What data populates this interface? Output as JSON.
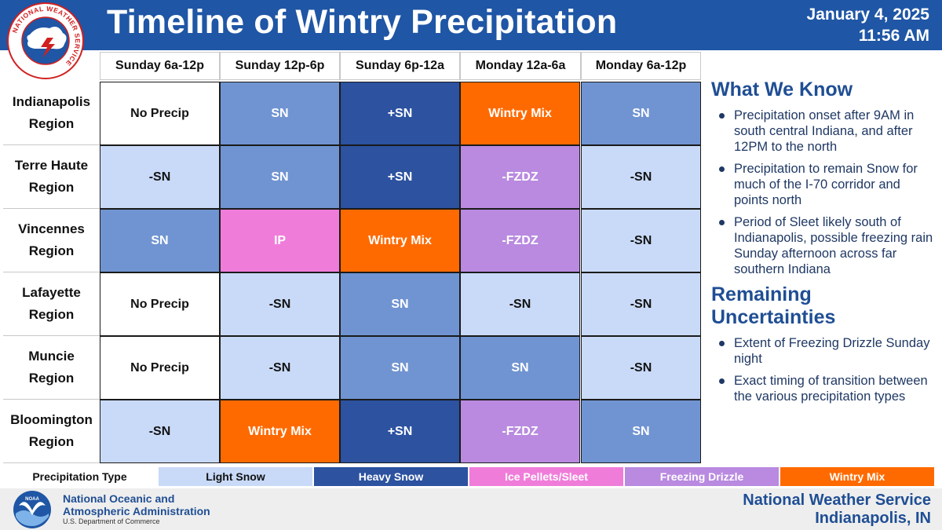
{
  "header": {
    "title": "Timeline of Wintry Precipitation",
    "date": "January 4, 2025",
    "time": "11:56 AM",
    "logo_text": "NATIONAL WEATHER SERVICE"
  },
  "columns": [
    "Sunday 6a-12p",
    "Sunday 12p-6p",
    "Sunday 6p-12a",
    "Monday 12a-6a",
    "Monday 6a-12p"
  ],
  "rows": [
    {
      "region": [
        "Indianapolis",
        "Region"
      ],
      "cells": [
        {
          "text": "No Precip",
          "type": "none"
        },
        {
          "text": "SN",
          "type": "snow"
        },
        {
          "text": "+SN",
          "type": "heavy"
        },
        {
          "text": "Wintry Mix",
          "type": "mix"
        },
        {
          "text": "SN",
          "type": "snow"
        }
      ]
    },
    {
      "region": [
        "Terre Haute",
        "Region"
      ],
      "cells": [
        {
          "text": "-SN",
          "type": "light"
        },
        {
          "text": "SN",
          "type": "snow"
        },
        {
          "text": "+SN",
          "type": "heavy"
        },
        {
          "text": "-FZDZ",
          "type": "fzdz"
        },
        {
          "text": "-SN",
          "type": "light"
        }
      ]
    },
    {
      "region": [
        "Vincennes",
        "Region"
      ],
      "cells": [
        {
          "text": "SN",
          "type": "snow"
        },
        {
          "text": "IP",
          "type": "ip"
        },
        {
          "text": "Wintry Mix",
          "type": "mix"
        },
        {
          "text": "-FZDZ",
          "type": "fzdz"
        },
        {
          "text": "-SN",
          "type": "light"
        }
      ]
    },
    {
      "region": [
        "Lafayette",
        "Region"
      ],
      "cells": [
        {
          "text": "No Precip",
          "type": "none"
        },
        {
          "text": "-SN",
          "type": "light"
        },
        {
          "text": "SN",
          "type": "snow"
        },
        {
          "text": "-SN",
          "type": "light"
        },
        {
          "text": "-SN",
          "type": "light"
        }
      ]
    },
    {
      "region": [
        "Muncie",
        "Region"
      ],
      "cells": [
        {
          "text": "No Precip",
          "type": "none"
        },
        {
          "text": "-SN",
          "type": "light"
        },
        {
          "text": "SN",
          "type": "snow"
        },
        {
          "text": "SN",
          "type": "snow"
        },
        {
          "text": "-SN",
          "type": "light"
        }
      ]
    },
    {
      "region": [
        "Bloomington",
        "Region"
      ],
      "cells": [
        {
          "text": "-SN",
          "type": "light"
        },
        {
          "text": "Wintry Mix",
          "type": "mix"
        },
        {
          "text": "+SN",
          "type": "heavy"
        },
        {
          "text": "-FZDZ",
          "type": "fzdz"
        },
        {
          "text": "SN",
          "type": "snow"
        }
      ]
    }
  ],
  "what_we_know": {
    "heading": "What We Know",
    "bullets": [
      "Precipitation onset after 9AM in south central Indiana, and after 12PM to the north",
      "Precipitation to remain Snow for much of the I-70 corridor and points north",
      "Period of Sleet likely south of Indianapolis, possible freezing rain Sunday afternoon across far southern Indiana"
    ]
  },
  "uncertainties": {
    "heading": "Remaining Uncertainties",
    "bullets": [
      "Extent of Freezing Drizzle Sunday night",
      "Exact timing of transition between the various precipitation types"
    ]
  },
  "legend": {
    "title": "Precipitation Type",
    "items": [
      {
        "label": "Light Snow",
        "color": "#c9daf8",
        "text_color": "#111111"
      },
      {
        "label": "Heavy Snow",
        "color": "#2c52a0",
        "text_color": "#ffffff"
      },
      {
        "label": "Ice Pellets/Sleet",
        "color": "#f07cda",
        "text_color": "#ffffff"
      },
      {
        "label": "Freezing Drizzle",
        "color": "#b98ae0",
        "text_color": "#ffffff"
      },
      {
        "label": "Wintry Mix",
        "color": "#ff6a00",
        "text_color": "#ffffff"
      }
    ]
  },
  "footer": {
    "noaa_name_line1": "National Oceanic and",
    "noaa_name_line2": "Atmospheric Administration",
    "noaa_dept": "U.S. Department of Commerce",
    "office_line1": "National Weather Service",
    "office_line2": "Indianapolis, IN"
  },
  "colors": {
    "header_blue": "#1f56a5",
    "heading_blue": "#1f4e94",
    "no_precip": "#ffffff",
    "light_snow": "#c9daf8",
    "snow": "#7094d1",
    "heavy_snow": "#2c52a0",
    "ice_pellets": "#f07cda",
    "freezing_drizzle": "#b98ae0",
    "wintry_mix": "#ff6a00"
  },
  "icons": [
    "nws-logo-icon",
    "noaa-logo-icon",
    "bullet-icon"
  ]
}
